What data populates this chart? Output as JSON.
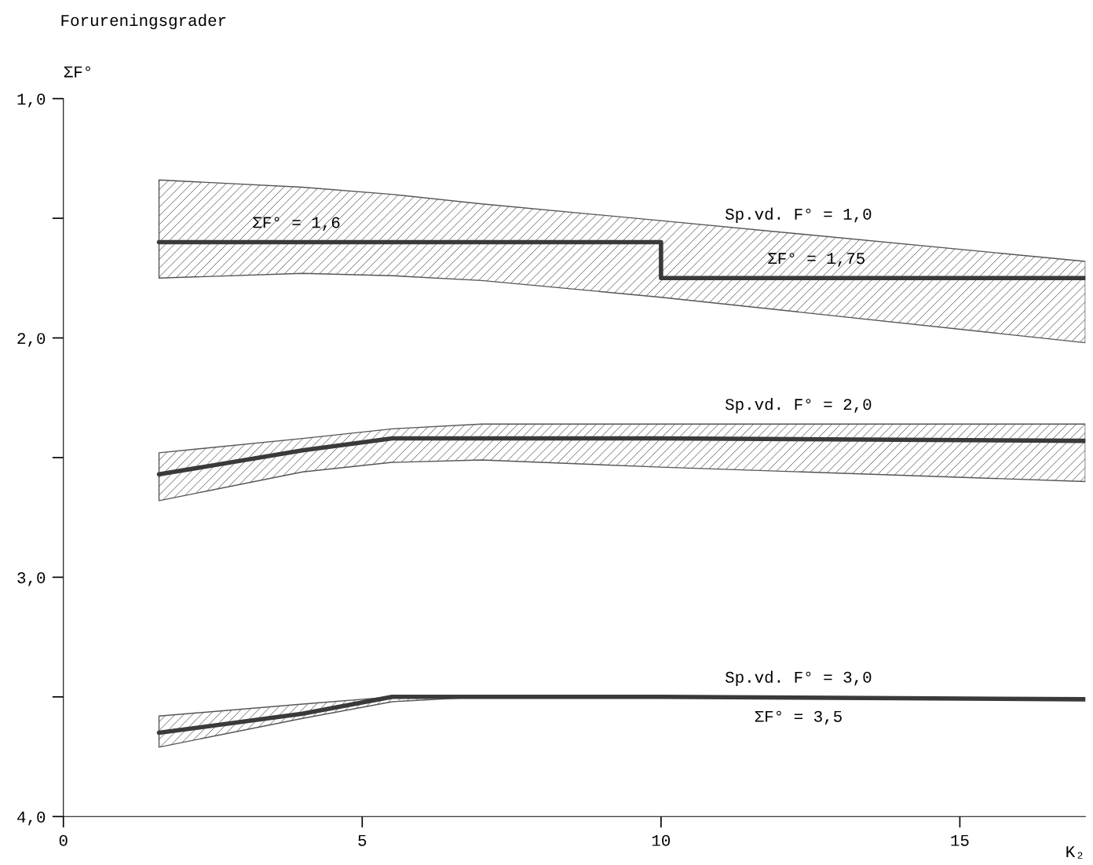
{
  "chart_data": {
    "type": "line",
    "title": "Forureningsgrader",
    "ylabel": "ΣF°",
    "xlabel": "K₂",
    "xlim": [
      0,
      17.1
    ],
    "ylim": [
      4.0,
      1.0
    ],
    "xticks": [
      0,
      5,
      10,
      15
    ],
    "yticks": [
      {
        "value": 1.0,
        "label": "1,0"
      },
      {
        "value": 1.5,
        "label": null
      },
      {
        "value": 2.0,
        "label": "2,0"
      },
      {
        "value": 2.5,
        "label": null
      },
      {
        "value": 3.0,
        "label": "3,0"
      },
      {
        "value": 3.5,
        "label": null
      },
      {
        "value": 4.0,
        "label": "4,0"
      }
    ],
    "line_style": "solid",
    "series": [
      {
        "color": "#3a3a3a",
        "x": [
          1.6,
          4,
          5.5,
          7,
          10,
          10,
          17.1
        ],
        "values": [
          1.6,
          1.6,
          1.6,
          1.6,
          1.6,
          1.75,
          1.75
        ],
        "upper": [
          1.34,
          1.37,
          1.4,
          1.44,
          1.51,
          1.51,
          1.68
        ],
        "lower": [
          1.75,
          1.73,
          1.74,
          1.76,
          1.83,
          1.83,
          2.02
        ]
      },
      {
        "color": "#3a3a3a",
        "x": [
          1.6,
          4,
          5.5,
          7,
          10,
          17.1
        ],
        "values": [
          2.57,
          2.47,
          2.42,
          2.42,
          2.42,
          2.43
        ],
        "upper": [
          2.48,
          2.42,
          2.38,
          2.36,
          2.36,
          2.36
        ],
        "lower": [
          2.68,
          2.56,
          2.52,
          2.51,
          2.54,
          2.6
        ]
      },
      {
        "color": "#3a3a3a",
        "x": [
          1.6,
          4,
          5.5,
          7,
          10,
          17.1
        ],
        "values": [
          3.65,
          3.57,
          3.5,
          3.5,
          3.5,
          3.51
        ],
        "upper": [
          3.58,
          3.53,
          3.5,
          3.5,
          3.5,
          3.51
        ],
        "lower": [
          3.71,
          3.59,
          3.52,
          3.5,
          3.5,
          3.51
        ]
      }
    ],
    "annotations": [
      {
        "text": "ΣF° = 1,6",
        "x": 3.9,
        "y": 1.6
      },
      {
        "text": "Sp.vd. F° = 1,0",
        "x": 12.3,
        "y": 1.565
      },
      {
        "text": "ΣF° = 1,75",
        "x": 12.6,
        "y": 1.75
      },
      {
        "text": "Sp.vd. F° = 2,0",
        "x": 12.3,
        "y": 2.36
      },
      {
        "text": "Sp.vd. F° = 3,0",
        "x": 12.3,
        "y": 3.5
      },
      {
        "text": "ΣF° = 3,5",
        "x": 12.3,
        "y": 3.5
      }
    ]
  }
}
